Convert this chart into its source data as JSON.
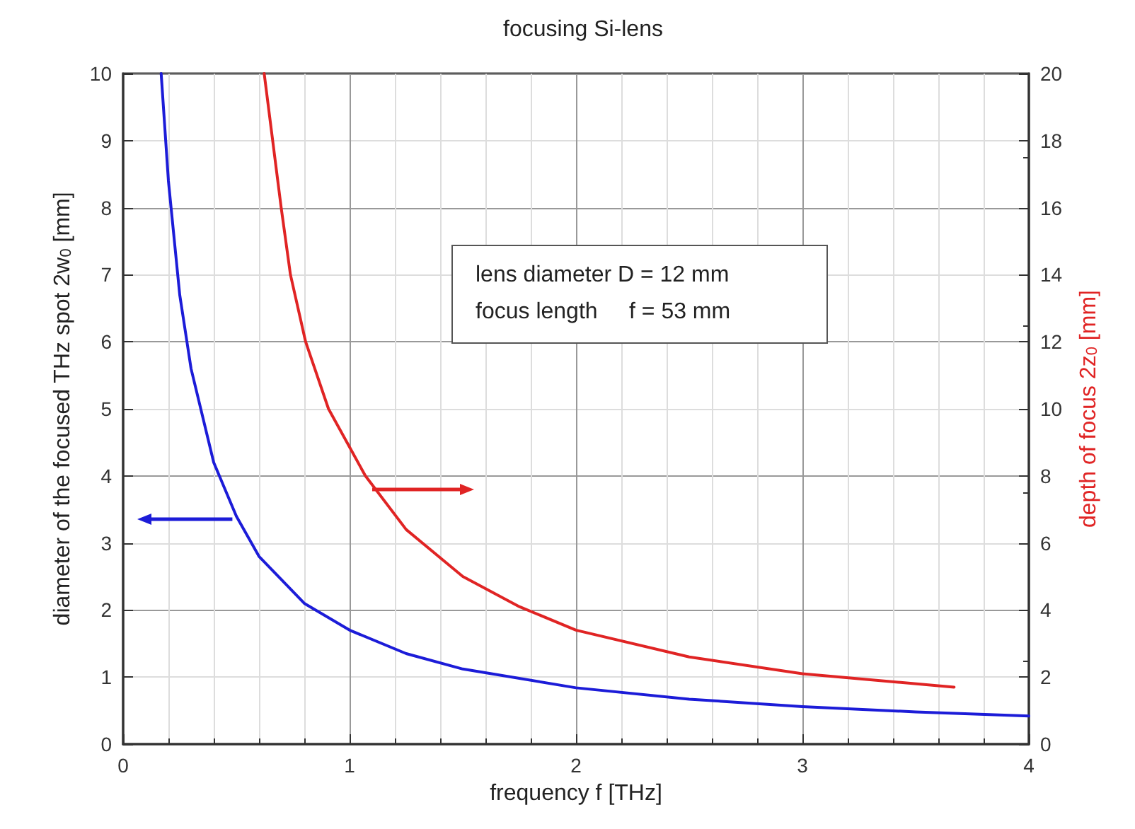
{
  "chart_data": {
    "type": "line",
    "title": "focusing Si-lens",
    "xlabel": "frequency f [THz]",
    "ylabel": "diameter of the focused THz spot 2w$_{0}$ [mm]",
    "y2label": "depth of focus 2z$_{0}$ [mm]",
    "annotations": [
      "lens diameter D = 12 mm",
      "focus length     f = 53 mm"
    ],
    "series": [
      {
        "color": "#1c1cd8",
        "axis": "y",
        "x": [
          0.168,
          0.2,
          0.25,
          0.3,
          0.4,
          0.5,
          0.6,
          0.8,
          1,
          1.25,
          1.5,
          2,
          2.5,
          3,
          3.5,
          4
        ],
        "values": [
          10,
          8.4,
          6.7,
          5.6,
          4.2,
          3.4,
          2.8,
          2.1,
          1.7,
          1.35,
          1.12,
          0.84,
          0.67,
          0.56,
          0.48,
          0.42
        ]
      },
      {
        "color": "#e02424",
        "axis": "y2",
        "x": [
          0.623,
          0.698,
          0.739,
          0.806,
          0.907,
          1.07,
          1.25,
          1.5,
          1.75,
          2,
          2.5,
          3,
          3.67
        ],
        "values": [
          20,
          16,
          14,
          12,
          10,
          8,
          6.4,
          5,
          4.1,
          3.4,
          2.6,
          2.1,
          1.7
        ]
      }
    ],
    "xlim": [
      0,
      4
    ],
    "xticks": [
      0,
      1,
      2,
      3,
      4
    ],
    "ylim": [
      0,
      10
    ],
    "yticks": [
      0,
      1,
      2,
      3,
      4,
      5,
      6,
      7,
      8,
      9,
      10
    ],
    "y2lim": [
      0,
      20
    ],
    "y2ticks": [
      0,
      2,
      4,
      6,
      8,
      10,
      12,
      14,
      16,
      18,
      20
    ],
    "grid": true,
    "marker": "none",
    "line_style": "solid"
  }
}
